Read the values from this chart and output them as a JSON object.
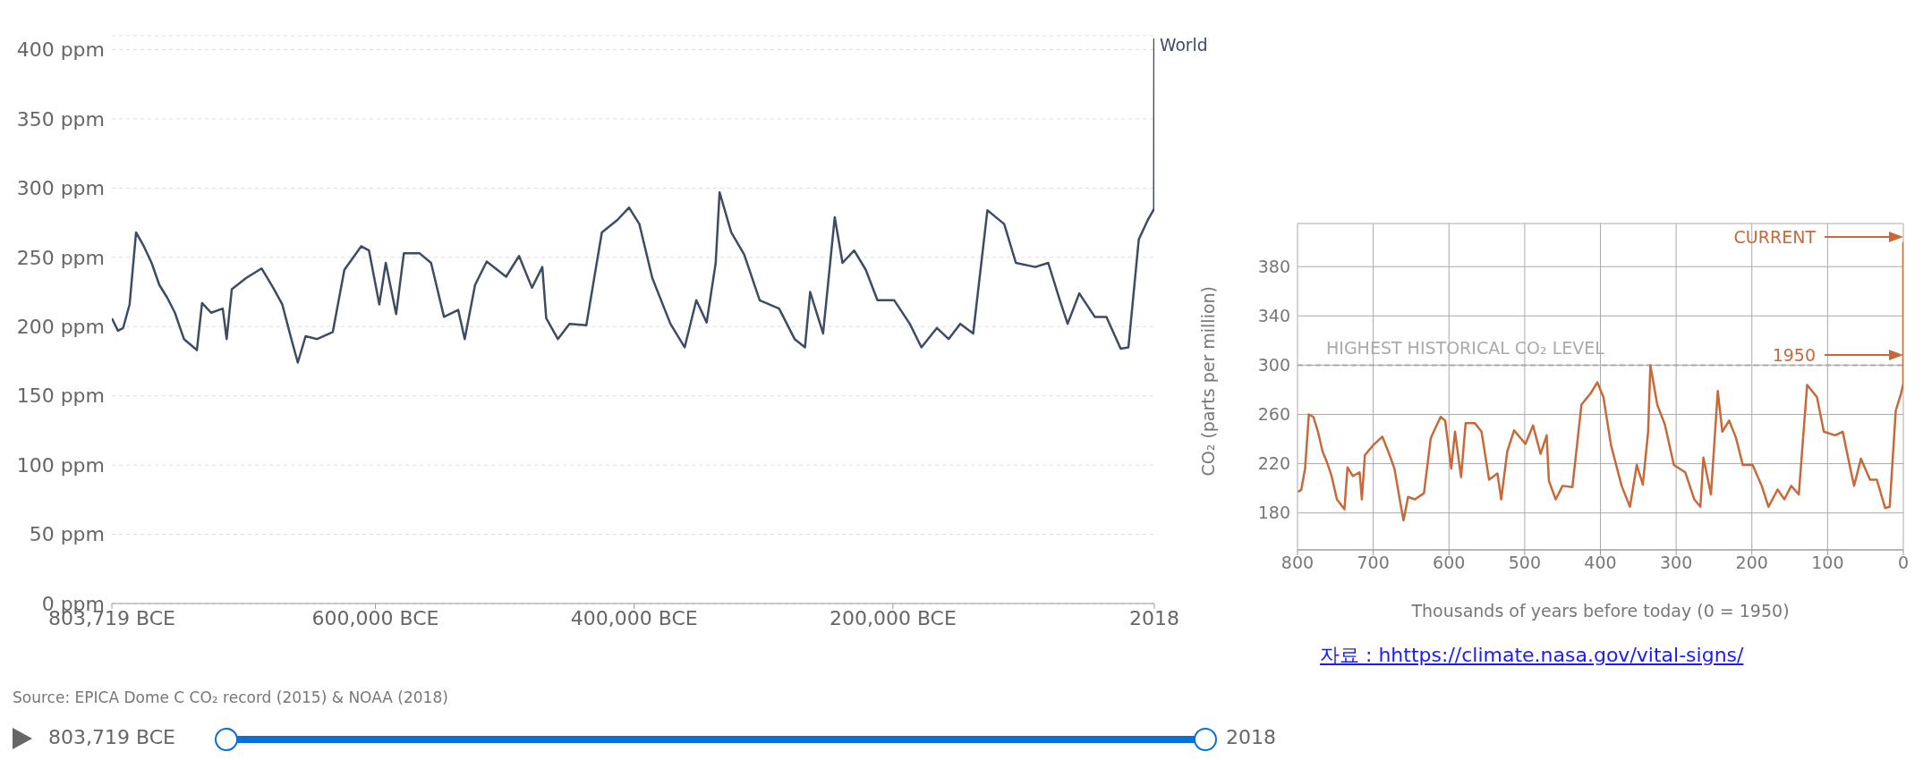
{
  "chart_data": [
    {
      "type": "line",
      "grid": "y",
      "xlim": [
        -803719,
        2018
      ],
      "xticks": [
        {
          "value": -803719,
          "label": "803,719 BCE"
        },
        {
          "value": -600000,
          "label": "600,000 BCE"
        },
        {
          "value": -400000,
          "label": "400,000 BCE"
        },
        {
          "value": -200000,
          "label": "200,000 BCE"
        },
        2018
      ],
      "ylim": [
        0,
        410
      ],
      "yticks": [
        {
          "value": 0,
          "label": "0 ppm"
        },
        {
          "value": 50,
          "label": "50 ppm"
        },
        {
          "value": 100,
          "label": "100 ppm"
        },
        {
          "value": 150,
          "label": "150 ppm"
        },
        {
          "value": 200,
          "label": "200 ppm"
        },
        {
          "value": 250,
          "label": "250 ppm"
        },
        {
          "value": 300,
          "label": "300 ppm"
        },
        {
          "value": 350,
          "label": "350 ppm"
        },
        {
          "value": 400,
          "label": "400 ppm"
        }
      ],
      "series": [
        {
          "name": "World",
          "color": "#3d4c63",
          "x": [
            -803719,
            -799000,
            -795000,
            -790000,
            -785000,
            -779000,
            -773000,
            -767000,
            -761000,
            -755000,
            -748000,
            -738000,
            -734000,
            -727000,
            -718000,
            -715000,
            -711000,
            -700000,
            -688000,
            -679000,
            -672000,
            -665000,
            -660000,
            -654000,
            -645000,
            -633000,
            -624000,
            -611000,
            -605000,
            -597000,
            -592000,
            -584000,
            -578000,
            -566000,
            -557000,
            -547000,
            -536000,
            -531000,
            -523000,
            -514000,
            -499000,
            -489000,
            -479000,
            -471000,
            -468000,
            -459000,
            -450000,
            -437000,
            -425000,
            -413000,
            -404000,
            -396000,
            -386000,
            -372000,
            -361000,
            -352000,
            -344000,
            -337000,
            -334000,
            -325000,
            -315000,
            -303000,
            -288000,
            -276000,
            -268000,
            -264000,
            -254000,
            -245000,
            -239000,
            -230000,
            -221000,
            -212000,
            -199000,
            -187000,
            -178000,
            -166000,
            -157000,
            -148000,
            -138000,
            -127000,
            -114000,
            -105000,
            -90000,
            -80000,
            -71000,
            -65000,
            -56000,
            -44000,
            -35000,
            -24000,
            -18000,
            -10000,
            -3000,
            1850,
            2018
          ],
          "values": [
            206,
            197,
            199,
            216,
            268,
            258,
            246,
            230,
            221,
            210,
            191,
            183,
            217,
            210,
            213,
            191,
            227,
            235,
            242,
            228,
            216,
            191,
            174,
            193,
            191,
            196,
            241,
            258,
            255,
            216,
            246,
            209,
            253,
            253,
            246,
            207,
            212,
            191,
            230,
            247,
            236,
            251,
            228,
            243,
            206,
            191,
            202,
            201,
            268,
            277,
            286,
            274,
            235,
            202,
            185,
            219,
            203,
            246,
            297,
            268,
            252,
            219,
            213,
            191,
            185,
            225,
            195,
            279,
            246,
            255,
            241,
            219,
            219,
            202,
            185,
            199,
            191,
            202,
            195,
            284,
            274,
            246,
            243,
            246,
            219,
            202,
            224,
            207,
            207,
            184,
            185,
            263,
            277,
            285,
            408
          ]
        }
      ],
      "annotations": [
        "Source: EPICA Dome C CO₂ record (2015) & NOAA (2018)",
        "803,719 BCE",
        "2018"
      ]
    },
    {
      "type": "line",
      "grid": true,
      "xlabel": "Thousands of years before today (0 = 1950)",
      "ylabel": "CO₂ (parts per million)",
      "xlim": [
        800,
        0
      ],
      "xticks": [
        800,
        700,
        600,
        500,
        400,
        300,
        200,
        100,
        0
      ],
      "ylim": [
        150,
        415
      ],
      "yticks": [
        180,
        220,
        260,
        300,
        340,
        380
      ],
      "series": [
        {
          "color": "#c8693a",
          "x": [
            799,
            795,
            790,
            785,
            779,
            773,
            767,
            761,
            755,
            748,
            738,
            734,
            727,
            718,
            715,
            711,
            700,
            688,
            679,
            672,
            665,
            660,
            654,
            645,
            633,
            624,
            611,
            605,
            597,
            592,
            584,
            578,
            566,
            557,
            547,
            536,
            531,
            523,
            514,
            499,
            489,
            479,
            471,
            468,
            459,
            450,
            437,
            425,
            413,
            404,
            396,
            386,
            372,
            361,
            352,
            344,
            337,
            334,
            325,
            315,
            303,
            288,
            276,
            268,
            264,
            254,
            245,
            239,
            230,
            221,
            212,
            199,
            187,
            178,
            166,
            157,
            148,
            138,
            127,
            114,
            105,
            90,
            80,
            71,
            65,
            56,
            44,
            35,
            24,
            18,
            10,
            3,
            0,
            0
          ],
          "values": [
            197,
            199,
            216,
            260,
            258,
            246,
            230,
            221,
            210,
            191,
            183,
            217,
            210,
            213,
            191,
            227,
            235,
            242,
            228,
            216,
            191,
            174,
            193,
            191,
            196,
            241,
            258,
            255,
            216,
            246,
            209,
            253,
            253,
            246,
            207,
            212,
            191,
            230,
            247,
            236,
            251,
            228,
            243,
            206,
            191,
            202,
            201,
            268,
            277,
            286,
            274,
            235,
            202,
            185,
            219,
            203,
            246,
            300,
            268,
            252,
            219,
            213,
            191,
            185,
            225,
            195,
            279,
            246,
            255,
            241,
            219,
            219,
            202,
            185,
            199,
            191,
            202,
            195,
            284,
            274,
            246,
            243,
            246,
            219,
            202,
            224,
            207,
            207,
            184,
            185,
            263,
            277,
            285,
            400
          ]
        }
      ],
      "ref_lines": [
        {
          "axis": "y",
          "value": 300,
          "label": "HIGHEST HISTORICAL CO₂ LEVEL",
          "color": "#aaaaaa",
          "line_style": "dashed"
        }
      ],
      "annotations": [
        "CURRENT",
        "1950",
        "자료 : hhttps://climate.nasa.gov/vital-signs/"
      ]
    }
  ]
}
